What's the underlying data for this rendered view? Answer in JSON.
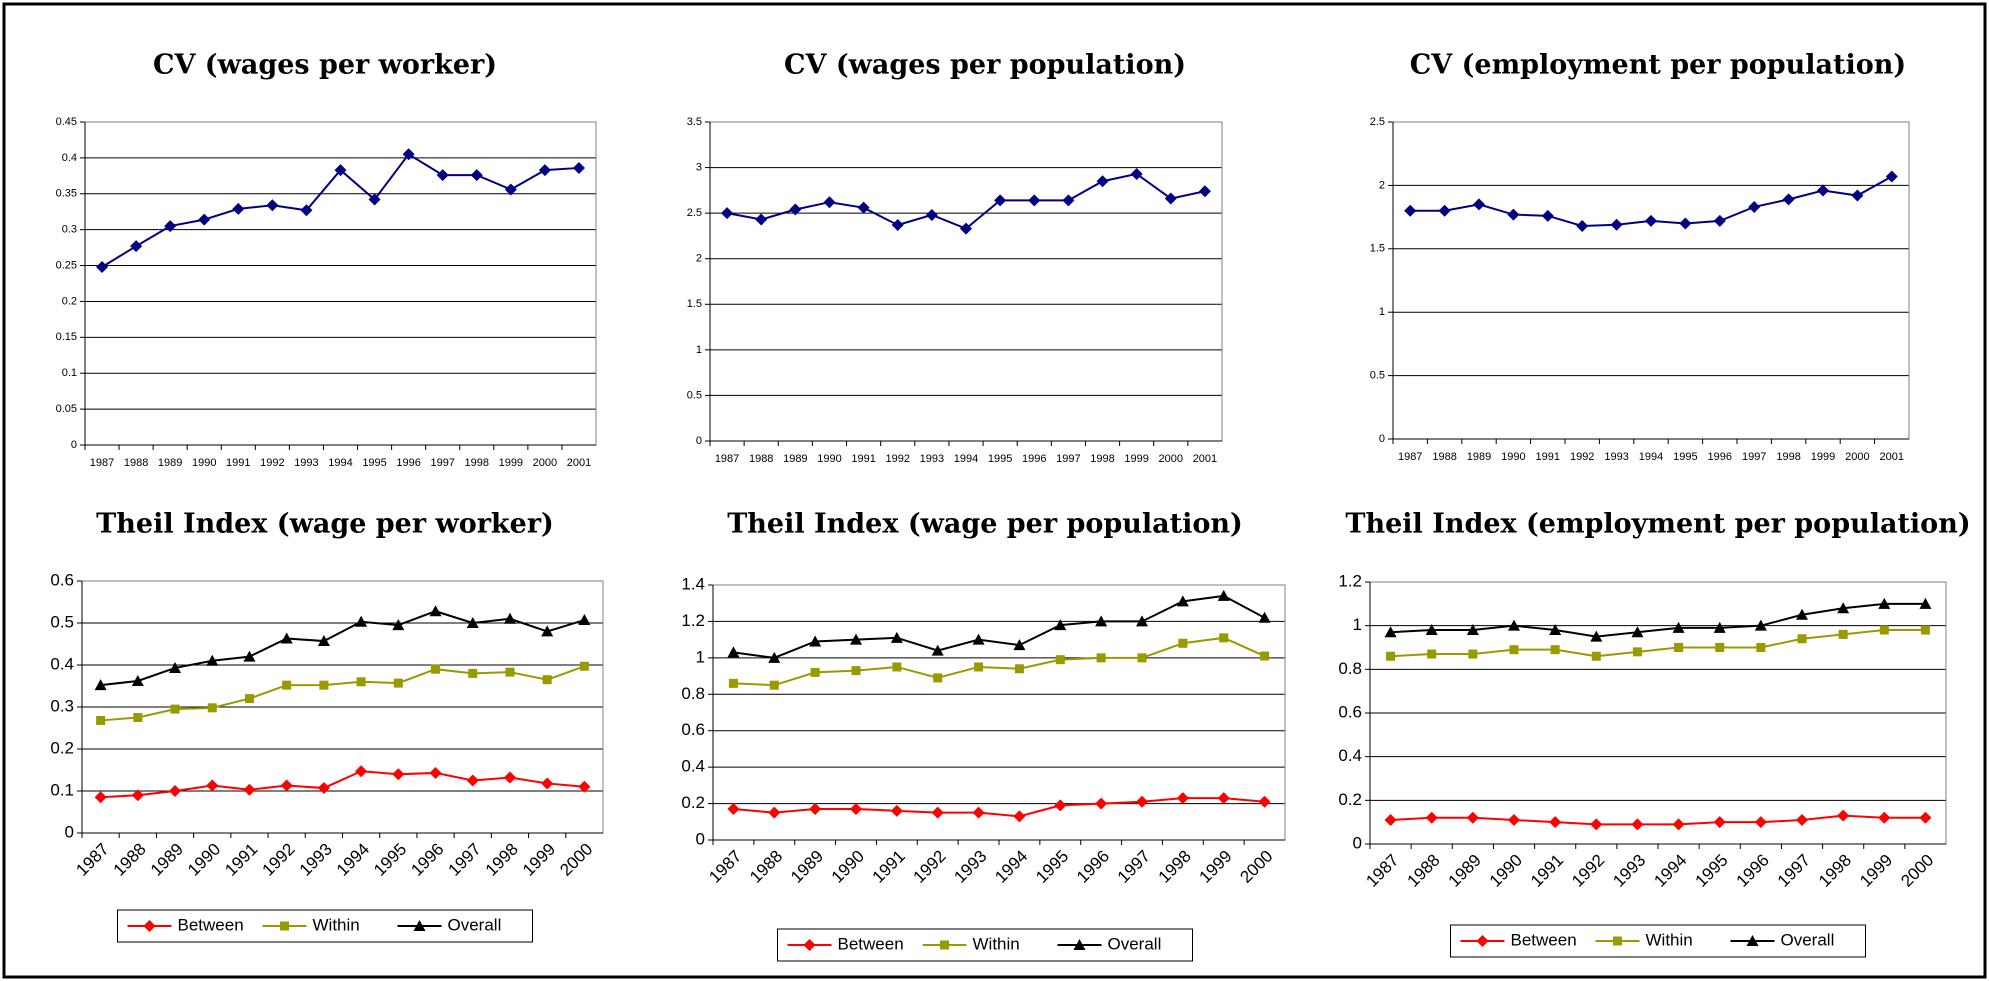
{
  "chart_data": [
    {
      "type": "line",
      "title": "CV (wages per worker)",
      "categories": [
        "1987",
        "1988",
        "1989",
        "1990",
        "1991",
        "1992",
        "1993",
        "1994",
        "1995",
        "1996",
        "1997",
        "1998",
        "1999",
        "2000",
        "2001"
      ],
      "values": [
        0.248,
        0.277,
        0.305,
        0.314,
        0.329,
        0.334,
        0.327,
        0.383,
        0.342,
        0.405,
        0.376,
        0.376,
        0.356,
        0.383,
        0.386
      ],
      "color": "#000080",
      "marker": "diamond",
      "ylim": [
        0,
        0.45
      ],
      "yticks": [
        0,
        0.05,
        0.1,
        0.15,
        0.2,
        0.25,
        0.3,
        0.35,
        0.4,
        0.45
      ],
      "grid": true
    },
    {
      "type": "line",
      "title": "CV (wages per population)",
      "categories": [
        "1987",
        "1988",
        "1989",
        "1990",
        "1991",
        "1992",
        "1993",
        "1994",
        "1995",
        "1996",
        "1997",
        "1998",
        "1999",
        "2000",
        "2001"
      ],
      "values": [
        2.5,
        2.43,
        2.54,
        2.62,
        2.56,
        2.37,
        2.48,
        2.33,
        2.64,
        2.64,
        2.64,
        2.85,
        2.93,
        2.66,
        2.74
      ],
      "color": "#000080",
      "marker": "diamond",
      "ylim": [
        0,
        3.5
      ],
      "yticks": [
        0,
        0.5,
        1,
        1.5,
        2,
        2.5,
        3,
        3.5
      ],
      "grid": true
    },
    {
      "type": "line",
      "title": "CV (employment per population)",
      "categories": [
        "1987",
        "1988",
        "1989",
        "1990",
        "1991",
        "1992",
        "1993",
        "1994",
        "1995",
        "1996",
        "1997",
        "1998",
        "1999",
        "2000",
        "2001"
      ],
      "values": [
        1.8,
        1.8,
        1.85,
        1.77,
        1.76,
        1.68,
        1.69,
        1.72,
        1.7,
        1.72,
        1.83,
        1.89,
        1.96,
        1.92,
        2.07
      ],
      "color": "#000080",
      "marker": "diamond",
      "ylim": [
        0,
        2.5
      ],
      "yticks": [
        0,
        0.5,
        1,
        1.5,
        2,
        2.5
      ],
      "grid": true
    },
    {
      "type": "line",
      "title": "Theil Index (wage per worker)",
      "categories": [
        "1987",
        "1988",
        "1989",
        "1990",
        "1991",
        "1992",
        "1993",
        "1994",
        "1995",
        "1996",
        "1997",
        "1998",
        "1999",
        "2000"
      ],
      "series": [
        {
          "name": "Between",
          "color": "#ff0000",
          "marker": "diamond",
          "values": [
            0.085,
            0.09,
            0.1,
            0.113,
            0.103,
            0.113,
            0.107,
            0.147,
            0.14,
            0.143,
            0.125,
            0.132,
            0.118,
            0.11
          ]
        },
        {
          "name": "Within",
          "color": "#999900",
          "marker": "square",
          "values": [
            0.268,
            0.275,
            0.295,
            0.298,
            0.32,
            0.352,
            0.352,
            0.36,
            0.357,
            0.39,
            0.38,
            0.383,
            0.365,
            0.397
          ]
        },
        {
          "name": "Overall",
          "color": "#000000",
          "marker": "triangle",
          "values": [
            0.352,
            0.362,
            0.393,
            0.41,
            0.42,
            0.463,
            0.457,
            0.503,
            0.495,
            0.528,
            0.5,
            0.51,
            0.48,
            0.507
          ]
        }
      ],
      "ylim": [
        0,
        0.6
      ],
      "yticks": [
        0,
        0.1,
        0.2,
        0.3,
        0.4,
        0.5,
        0.6
      ],
      "grid": true,
      "legend": "bottom"
    },
    {
      "type": "line",
      "title": "Theil Index (wage per population)",
      "categories": [
        "1987",
        "1988",
        "1989",
        "1990",
        "1991",
        "1992",
        "1993",
        "1994",
        "1995",
        "1996",
        "1997",
        "1998",
        "1999",
        "2000"
      ],
      "series": [
        {
          "name": "Between",
          "color": "#ff0000",
          "marker": "diamond",
          "values": [
            0.17,
            0.15,
            0.17,
            0.17,
            0.16,
            0.15,
            0.15,
            0.13,
            0.19,
            0.2,
            0.21,
            0.23,
            0.23,
            0.21
          ]
        },
        {
          "name": "Within",
          "color": "#999900",
          "marker": "square",
          "values": [
            0.86,
            0.85,
            0.92,
            0.93,
            0.95,
            0.89,
            0.95,
            0.94,
            0.99,
            1.0,
            1.0,
            1.08,
            1.11,
            1.01
          ]
        },
        {
          "name": "Overall",
          "color": "#000000",
          "marker": "triangle",
          "values": [
            1.03,
            1.0,
            1.09,
            1.1,
            1.11,
            1.04,
            1.1,
            1.07,
            1.18,
            1.2,
            1.2,
            1.31,
            1.34,
            1.22
          ]
        }
      ],
      "ylim": [
        0,
        1.4
      ],
      "yticks": [
        0,
        0.2,
        0.4,
        0.6,
        0.8,
        1,
        1.2,
        1.4
      ],
      "grid": true,
      "legend": "bottom"
    },
    {
      "type": "line",
      "title": "Theil Index (employment per population)",
      "categories": [
        "1987",
        "1988",
        "1989",
        "1990",
        "1991",
        "1992",
        "1993",
        "1994",
        "1995",
        "1996",
        "1997",
        "1998",
        "1999",
        "2000"
      ],
      "series": [
        {
          "name": "Between",
          "color": "#ff0000",
          "marker": "diamond",
          "values": [
            0.11,
            0.12,
            0.12,
            0.11,
            0.1,
            0.09,
            0.09,
            0.09,
            0.1,
            0.1,
            0.11,
            0.13,
            0.12,
            0.12
          ]
        },
        {
          "name": "Within",
          "color": "#999900",
          "marker": "square",
          "values": [
            0.86,
            0.87,
            0.87,
            0.89,
            0.89,
            0.86,
            0.88,
            0.9,
            0.9,
            0.9,
            0.94,
            0.96,
            0.98,
            0.98
          ]
        },
        {
          "name": "Overall",
          "color": "#000000",
          "marker": "triangle",
          "values": [
            0.97,
            0.98,
            0.98,
            1.0,
            0.98,
            0.95,
            0.97,
            0.99,
            0.99,
            1.0,
            1.05,
            1.08,
            1.1,
            1.1
          ]
        }
      ],
      "ylim": [
        0,
        1.2
      ],
      "yticks": [
        0,
        0.2,
        0.4,
        0.6,
        0.8,
        1,
        1.2
      ],
      "grid": true,
      "legend": "bottom"
    }
  ]
}
